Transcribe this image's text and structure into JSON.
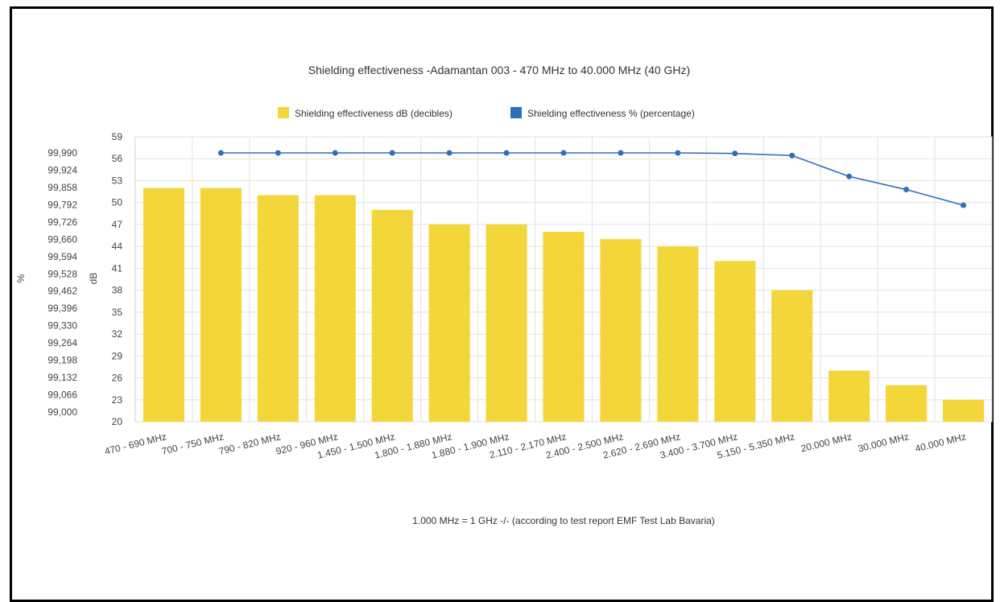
{
  "chart_data": {
    "type": "bar",
    "title": "Shielding effectiveness -Adamantan 003 - 470 MHz to 40.000 MHz (40 GHz)",
    "footnote": "1.000 MHz = 1 GHz -/- (according to test report EMF Test Lab Bavaria)",
    "categories": [
      "470 - 690 MHz",
      "700 - 750 MHz",
      "790 - 820 MHz",
      "920 - 960 MHz",
      "1.450 - 1.500 MHz",
      "1.800 - 1.880 MHz",
      "1.880 - 1.900 MHz",
      "2.110 - 2.170 MHz",
      "2.400 - 2.500 MHz",
      "2.620 - 2.690 MHz",
      "3.400 - 3.700 MHz",
      "5.150 - 5.350 MHz",
      "20.000 MHz",
      "30.000 MHz",
      "40.000 MHz"
    ],
    "series": [
      {
        "name": "Shielding effectiveness dB (decibles)",
        "type": "bar",
        "axis": "dB",
        "color": "#f2d63a",
        "values": [
          52,
          52,
          51,
          51,
          49,
          47,
          47,
          46,
          45,
          44,
          42,
          38,
          27,
          25,
          23
        ]
      },
      {
        "name": "Shielding effectiveness % (percentage)",
        "type": "line",
        "axis": "%",
        "color": "#2f6fba",
        "values": [
          null,
          99.99,
          99.99,
          99.99,
          99.99,
          99.99,
          99.99,
          99.99,
          99.99,
          99.99,
          99.988,
          99.98,
          99.9,
          99.85,
          99.79
        ]
      }
    ],
    "y_left": {
      "label": "%",
      "ticks": [
        "99,990",
        "99,924",
        "99,858",
        "99,792",
        "99,726",
        "99,660",
        "99,594",
        "99,528",
        "99,462",
        "99,396",
        "99,330",
        "99,264",
        "99,198",
        "99,132",
        "99,066",
        "99,000"
      ]
    },
    "y_right": {
      "label": "dB",
      "ticks": [
        "59",
        "56",
        "53",
        "50",
        "47",
        "44",
        "41",
        "38",
        "35",
        "32",
        "29",
        "26",
        "23",
        "20"
      ],
      "ylim": [
        20,
        59
      ]
    },
    "grid": true,
    "legend_position": "top"
  }
}
